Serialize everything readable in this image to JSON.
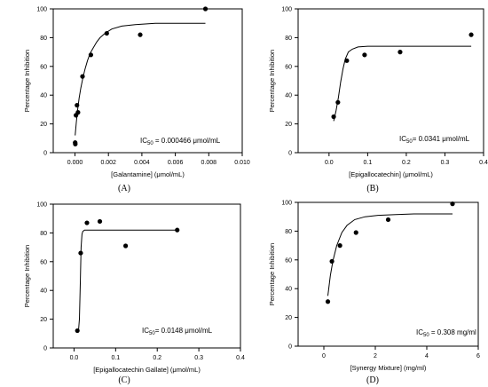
{
  "chart_data": [
    {
      "type": "scatter",
      "panel_label": "(A)",
      "xlabel": "[Galantamine] (μmol/mL)",
      "ylabel": "Percentage Inhibition",
      "xlim": [
        -0.0013,
        0.01
      ],
      "ylim": [
        0,
        100
      ],
      "xticks": [
        "0.000",
        "0.002",
        "0.004",
        "0.006",
        "0.008",
        "0.010"
      ],
      "xtick_values": [
        0,
        0.002,
        0.004,
        0.006,
        0.008,
        0.01
      ],
      "yticks": [
        "0",
        "20",
        "40",
        "60",
        "80",
        "100"
      ],
      "ytick_values": [
        0,
        20,
        40,
        60,
        80,
        100
      ],
      "annotation": {
        "prefix": "IC",
        "sub": "50",
        "text": " = 0.000466 μmol/mL"
      },
      "points": {
        "x": [
          1e-05,
          2e-05,
          6e-05,
          0.00012,
          0.00018,
          0.00045,
          0.00095,
          0.0019,
          0.0039,
          0.0078
        ],
        "y": [
          7,
          6,
          26,
          33,
          28,
          53,
          68,
          83,
          82,
          100
        ]
      },
      "fit": {
        "x": [
          1e-05,
          8e-05,
          0.00016,
          0.00025,
          0.00035,
          0.00047,
          0.0006,
          0.00075,
          0.0009,
          0.0011,
          0.0013,
          0.0015,
          0.0018,
          0.0022,
          0.0028,
          0.0036,
          0.0048,
          0.0064,
          0.0078
        ],
        "y": [
          12,
          21,
          30,
          38,
          45,
          52,
          58,
          64,
          69,
          73,
          77,
          80,
          83,
          86,
          88,
          89,
          90,
          90,
          90
        ]
      }
    },
    {
      "type": "scatter",
      "panel_label": "(B)",
      "xlabel": "[Epigallocatechin] (μmol/mL)",
      "ylabel": "Percentage Inhibition",
      "xlim": [
        -0.08,
        0.4
      ],
      "ylim": [
        0,
        100
      ],
      "xticks": [
        "0.0",
        "0.1",
        "0.2",
        "0.3",
        "0.4"
      ],
      "xtick_values": [
        0,
        0.1,
        0.2,
        0.3,
        0.4
      ],
      "yticks": [
        "0",
        "20",
        "40",
        "60",
        "80",
        "100"
      ],
      "ytick_values": [
        0,
        20,
        40,
        60,
        80,
        100
      ],
      "annotation": {
        "prefix": "IC",
        "sub": "50",
        "text": "= 0.0341 μmol/mL"
      },
      "points": {
        "x": [
          0.012,
          0.023,
          0.046,
          0.092,
          0.184,
          0.368
        ],
        "y": [
          25,
          35,
          64,
          68,
          70,
          82
        ]
      },
      "fit": {
        "x": [
          0.012,
          0.018,
          0.024,
          0.03,
          0.036,
          0.042,
          0.05,
          0.06,
          0.075,
          0.1,
          0.15,
          0.25,
          0.368
        ],
        "y": [
          22,
          29,
          38,
          49,
          58,
          65,
          70,
          72,
          73.5,
          74,
          74,
          74,
          74
        ]
      }
    },
    {
      "type": "scatter",
      "panel_label": "(C)",
      "xlabel": "[Epigallocatechin Gallate] (μmol/mL)",
      "ylabel": "Percentage Inhibition",
      "xlim": [
        -0.05,
        0.4
      ],
      "ylim": [
        0,
        100
      ],
      "xticks": [
        "0.0",
        "0.1",
        "0.2",
        "0.3",
        "0.4"
      ],
      "xtick_values": [
        0,
        0.1,
        0.2,
        0.3,
        0.4
      ],
      "yticks": [
        "0",
        "20",
        "40",
        "60",
        "80",
        "100"
      ],
      "ytick_values": [
        0,
        20,
        40,
        60,
        80,
        100
      ],
      "annotation": {
        "prefix": "IC",
        "sub": "50",
        "text": "= 0.0148 μmol/mL"
      },
      "points": {
        "x": [
          0.008,
          0.016,
          0.031,
          0.062,
          0.124,
          0.248
        ],
        "y": [
          12,
          66,
          87,
          88,
          71,
          82
        ]
      },
      "fit": {
        "x": [
          0.008,
          0.011,
          0.013,
          0.015,
          0.017,
          0.019,
          0.021,
          0.025,
          0.04,
          0.1,
          0.248
        ],
        "y": [
          12,
          13,
          20,
          45,
          70,
          79,
          81,
          82,
          82,
          82,
          82
        ]
      }
    },
    {
      "type": "scatter",
      "panel_label": "(D)",
      "xlabel": "[Synergy Mixture] (mg/ml)",
      "ylabel": "Percentage Inhibition",
      "xlim": [
        -1,
        6
      ],
      "ylim": [
        0,
        100
      ],
      "xticks": [
        "0",
        "2",
        "4",
        "6"
      ],
      "xtick_values": [
        0,
        2,
        4,
        6
      ],
      "yticks": [
        "0",
        "20",
        "40",
        "60",
        "80",
        "100"
      ],
      "ytick_values": [
        0,
        20,
        40,
        60,
        80,
        100
      ],
      "annotation": {
        "prefix": "IC",
        "sub": "50",
        "text": " = 0.308 mg/ml"
      },
      "points": {
        "x": [
          0.156,
          0.313,
          0.625,
          1.25,
          2.5,
          5.0
        ],
        "y": [
          31,
          59,
          70,
          79,
          88,
          99
        ]
      },
      "fit": {
        "x": [
          0.156,
          0.25,
          0.35,
          0.5,
          0.7,
          0.9,
          1.2,
          1.6,
          2.1,
          2.8,
          3.5,
          4.2,
          5.0
        ],
        "y": [
          35,
          49,
          59,
          70,
          79,
          84,
          88,
          90,
          91,
          91.5,
          92,
          92,
          92
        ]
      }
    }
  ]
}
